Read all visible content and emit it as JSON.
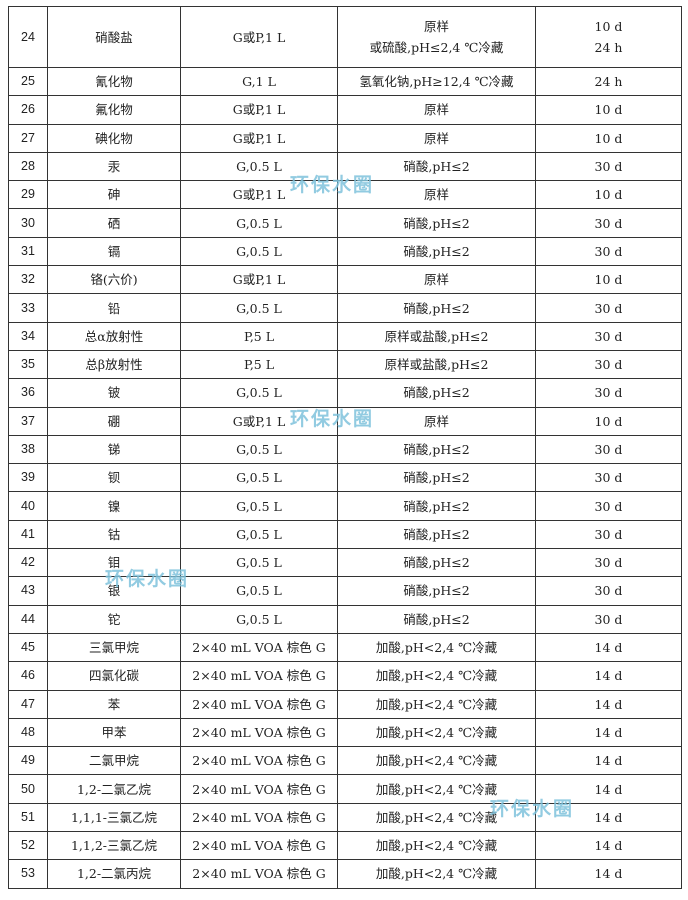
{
  "rows": [
    {
      "no": "24",
      "item": "硝酸盐",
      "container": "G或P,1 L",
      "preservation": [
        "原样",
        "或硫酸,pH≤2,4 ℃冷藏"
      ],
      "period": [
        "10 d",
        "24 h"
      ]
    },
    {
      "no": "25",
      "item": "氰化物",
      "container": "G,1 L",
      "preservation": [
        "氢氧化钠,pH≥12,4 ℃冷藏"
      ],
      "period": [
        "24 h"
      ]
    },
    {
      "no": "26",
      "item": "氟化物",
      "container": "G或P,1 L",
      "preservation": [
        "原样"
      ],
      "period": [
        "10 d"
      ]
    },
    {
      "no": "27",
      "item": "碘化物",
      "container": "G或P,1 L",
      "preservation": [
        "原样"
      ],
      "period": [
        "10 d"
      ]
    },
    {
      "no": "28",
      "item": "汞",
      "container": "G,0.5 L",
      "preservation": [
        "硝酸,pH≤2"
      ],
      "period": [
        "30 d"
      ]
    },
    {
      "no": "29",
      "item": "砷",
      "container": "G或P,1 L",
      "preservation": [
        "原样"
      ],
      "period": [
        "10 d"
      ]
    },
    {
      "no": "30",
      "item": "硒",
      "container": "G,0.5 L",
      "preservation": [
        "硝酸,pH≤2"
      ],
      "period": [
        "30 d"
      ]
    },
    {
      "no": "31",
      "item": "镉",
      "container": "G,0.5 L",
      "preservation": [
        "硝酸,pH≤2"
      ],
      "period": [
        "30 d"
      ]
    },
    {
      "no": "32",
      "item": "铬(六价)",
      "container": "G或P,1 L",
      "preservation": [
        "原样"
      ],
      "period": [
        "10 d"
      ]
    },
    {
      "no": "33",
      "item": "铅",
      "container": "G,0.5 L",
      "preservation": [
        "硝酸,pH≤2"
      ],
      "period": [
        "30 d"
      ]
    },
    {
      "no": "34",
      "item": "总α放射性",
      "container": "P,5 L",
      "preservation": [
        "原样或盐酸,pH≤2"
      ],
      "period": [
        "30 d"
      ]
    },
    {
      "no": "35",
      "item": "总β放射性",
      "container": "P,5 L",
      "preservation": [
        "原样或盐酸,pH≤2"
      ],
      "period": [
        "30 d"
      ]
    },
    {
      "no": "36",
      "item": "铍",
      "container": "G,0.5 L",
      "preservation": [
        "硝酸,pH≤2"
      ],
      "period": [
        "30 d"
      ]
    },
    {
      "no": "37",
      "item": "硼",
      "container": "G或P,1 L",
      "preservation": [
        "原样"
      ],
      "period": [
        "10 d"
      ]
    },
    {
      "no": "38",
      "item": "锑",
      "container": "G,0.5 L",
      "preservation": [
        "硝酸,pH≤2"
      ],
      "period": [
        "30 d"
      ]
    },
    {
      "no": "39",
      "item": "钡",
      "container": "G,0.5 L",
      "preservation": [
        "硝酸,pH≤2"
      ],
      "period": [
        "30 d"
      ]
    },
    {
      "no": "40",
      "item": "镍",
      "container": "G,0.5 L",
      "preservation": [
        "硝酸,pH≤2"
      ],
      "period": [
        "30 d"
      ]
    },
    {
      "no": "41",
      "item": "钴",
      "container": "G,0.5 L",
      "preservation": [
        "硝酸,pH≤2"
      ],
      "period": [
        "30 d"
      ]
    },
    {
      "no": "42",
      "item": "钼",
      "container": "G,0.5 L",
      "preservation": [
        "硝酸,pH≤2"
      ],
      "period": [
        "30 d"
      ]
    },
    {
      "no": "43",
      "item": "银",
      "container": "G,0.5 L",
      "preservation": [
        "硝酸,pH≤2"
      ],
      "period": [
        "30 d"
      ]
    },
    {
      "no": "44",
      "item": "铊",
      "container": "G,0.5 L",
      "preservation": [
        "硝酸,pH≤2"
      ],
      "period": [
        "30 d"
      ]
    },
    {
      "no": "45",
      "item": "三氯甲烷",
      "container": "2×40 mL VOA 棕色 G",
      "preservation": [
        "加酸,pH<2,4 ℃冷藏"
      ],
      "period": [
        "14 d"
      ]
    },
    {
      "no": "46",
      "item": "四氯化碳",
      "container": "2×40 mL VOA 棕色 G",
      "preservation": [
        "加酸,pH<2,4 ℃冷藏"
      ],
      "period": [
        "14 d"
      ]
    },
    {
      "no": "47",
      "item": "苯",
      "container": "2×40 mL VOA 棕色 G",
      "preservation": [
        "加酸,pH<2,4 ℃冷藏"
      ],
      "period": [
        "14 d"
      ]
    },
    {
      "no": "48",
      "item": "甲苯",
      "container": "2×40 mL VOA 棕色 G",
      "preservation": [
        "加酸,pH<2,4 ℃冷藏"
      ],
      "period": [
        "14 d"
      ]
    },
    {
      "no": "49",
      "item": "二氯甲烷",
      "container": "2×40 mL VOA 棕色 G",
      "preservation": [
        "加酸,pH<2,4 ℃冷藏"
      ],
      "period": [
        "14 d"
      ]
    },
    {
      "no": "50",
      "item": "1,2-二氯乙烷",
      "container": "2×40 mL VOA 棕色 G",
      "preservation": [
        "加酸,pH<2,4 ℃冷藏"
      ],
      "period": [
        "14 d"
      ]
    },
    {
      "no": "51",
      "item": "1,1,1-三氯乙烷",
      "container": "2×40 mL VOA 棕色 G",
      "preservation": [
        "加酸,pH<2,4 ℃冷藏"
      ],
      "period": [
        "14 d"
      ]
    },
    {
      "no": "52",
      "item": "1,1,2-三氯乙烷",
      "container": "2×40 mL VOA 棕色 G",
      "preservation": [
        "加酸,pH<2,4 ℃冷藏"
      ],
      "period": [
        "14 d"
      ]
    },
    {
      "no": "53",
      "item": "1,2-二氯丙烷",
      "container": "2×40 mL VOA 棕色 G",
      "preservation": [
        "加酸,pH<2,4 ℃冷藏"
      ],
      "period": [
        "14 d"
      ]
    }
  ],
  "watermark": "环保水圈",
  "watermark_color": "#7fc3dc"
}
